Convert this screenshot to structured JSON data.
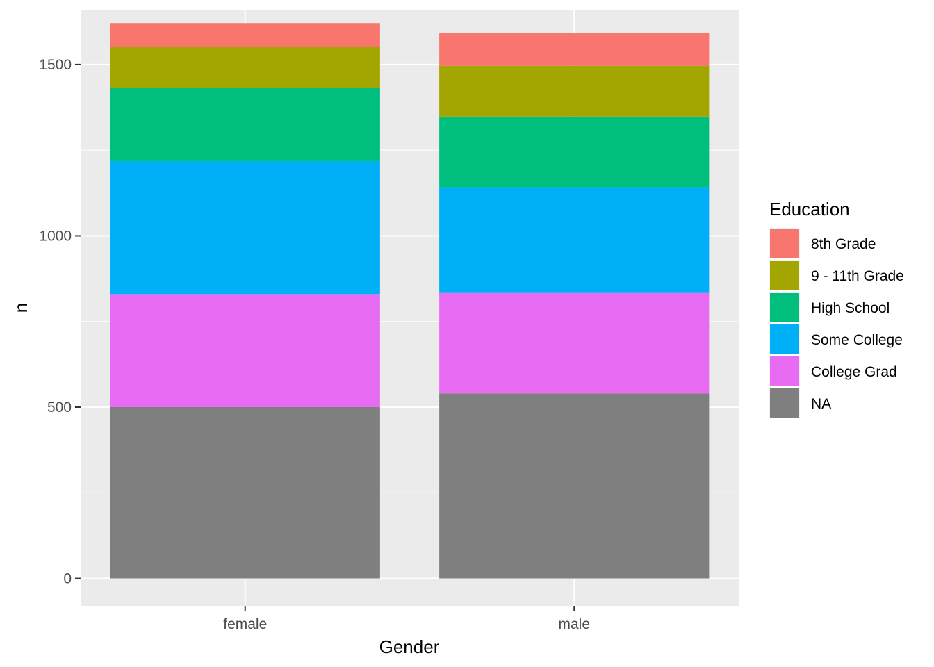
{
  "chart_data": {
    "type": "bar",
    "stacked": true,
    "categories": [
      "female",
      "male"
    ],
    "xlabel": "Gender",
    "ylabel": "n",
    "ylim": [
      -80,
      1660
    ],
    "yticks": [
      0,
      500,
      1000,
      1500
    ],
    "grid": true,
    "legend": {
      "title": "Education",
      "placement": "right"
    },
    "series": [
      {
        "name": "NA",
        "color": "#7F7F7F",
        "values": [
          500,
          540
        ]
      },
      {
        "name": "College Grad",
        "color": "#E76BF3",
        "values": [
          330,
          295
        ]
      },
      {
        "name": "Some College",
        "color": "#00B0F6",
        "values": [
          388,
          307
        ]
      },
      {
        "name": "High School",
        "color": "#00BF7D",
        "values": [
          214,
          206
        ]
      },
      {
        "name": "9 - 11th Grade",
        "color": "#A3A500",
        "values": [
          120,
          148
        ]
      },
      {
        "name": "8th Grade",
        "color": "#F8766D",
        "values": [
          69,
          95
        ]
      }
    ]
  }
}
